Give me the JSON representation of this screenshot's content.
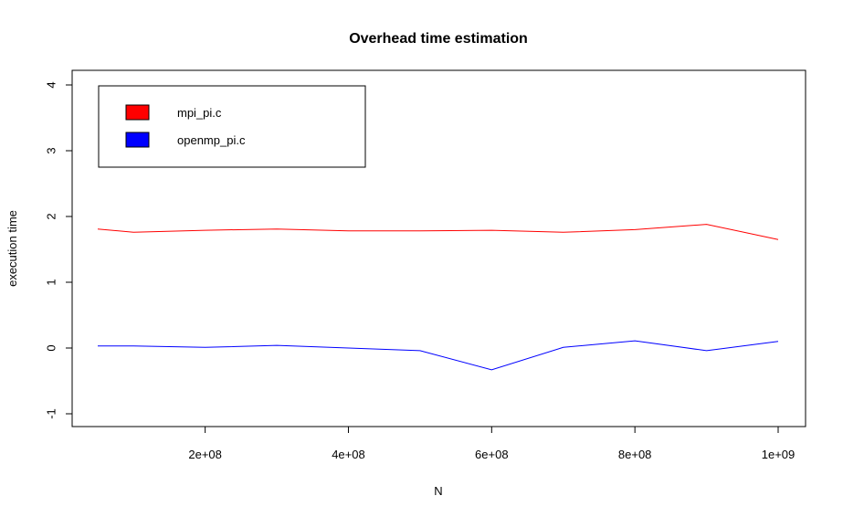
{
  "chart_data": {
    "type": "line",
    "title": "Overhead time estimation",
    "xlabel": "N",
    "ylabel": "execution time",
    "xlim": [
      0,
      1000000000
    ],
    "ylim": [
      -1,
      4
    ],
    "x_ticks": [
      200000000,
      400000000,
      600000000,
      800000000,
      1000000000
    ],
    "x_tick_labels": [
      "2e+08",
      "4e+08",
      "6e+08",
      "8e+08",
      "1e+09"
    ],
    "y_ticks": [
      -1,
      0,
      1,
      2,
      3,
      4
    ],
    "y_tick_labels": [
      "-1",
      "0",
      "1",
      "2",
      "3",
      "4"
    ],
    "grid": false,
    "legend_position": "top-left",
    "series": [
      {
        "name": "mpi_pi.c",
        "color": "#ff0000",
        "x": [
          50000000,
          100000000,
          200000000,
          300000000,
          400000000,
          500000000,
          600000000,
          700000000,
          800000000,
          900000000,
          1000000000
        ],
        "y": [
          1.81,
          1.76,
          1.79,
          1.81,
          1.78,
          1.78,
          1.79,
          1.76,
          1.8,
          1.88,
          1.65
        ]
      },
      {
        "name": "openmp_pi.c",
        "color": "#0000ff",
        "x": [
          50000000,
          100000000,
          200000000,
          300000000,
          400000000,
          500000000,
          600000000,
          700000000,
          800000000,
          900000000,
          1000000000
        ],
        "y": [
          0.03,
          0.03,
          0.01,
          0.04,
          0.0,
          -0.04,
          -0.33,
          0.01,
          0.11,
          -0.04,
          0.1
        ]
      }
    ]
  }
}
